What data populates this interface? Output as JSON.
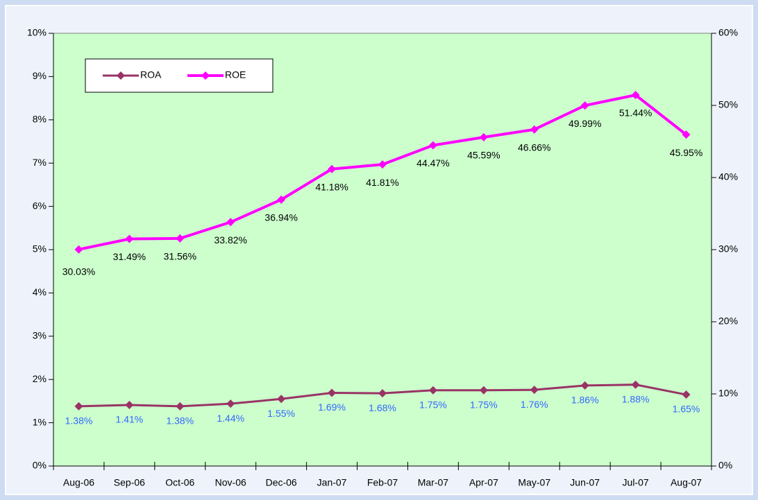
{
  "chart_data": {
    "type": "line",
    "categories": [
      "Aug-06",
      "Sep-06",
      "Oct-06",
      "Nov-06",
      "Dec-06",
      "Jan-07",
      "Feb-07",
      "Mar-07",
      "Apr-07",
      "May-07",
      "Jun-07",
      "Jul-07",
      "Aug-07"
    ],
    "series": [
      {
        "name": "ROA",
        "color": "#993366",
        "label_color": "#3366ff",
        "values": [
          1.38,
          1.41,
          1.38,
          1.44,
          1.55,
          1.69,
          1.68,
          1.75,
          1.75,
          1.76,
          1.86,
          1.88,
          1.65
        ],
        "value_labels": [
          "1.38%",
          "1.41%",
          "1.38%",
          "1.44%",
          "1.55%",
          "1.69%",
          "1.68%",
          "1.75%",
          "1.75%",
          "1.76%",
          "1.86%",
          "1.88%",
          "1.65%"
        ]
      },
      {
        "name": "ROE",
        "color": "#ff00ff",
        "axis": "y2",
        "label_color": "#000000",
        "values": [
          30.03,
          31.49,
          31.56,
          33.82,
          36.94,
          41.18,
          41.81,
          44.47,
          45.59,
          46.66,
          49.99,
          51.44,
          45.95
        ],
        "value_labels": [
          "30.03%",
          "31.49%",
          "31.56%",
          "33.82%",
          "36.94%",
          "41.18%",
          "41.81%",
          "44.47%",
          "45.59%",
          "46.66%",
          "49.99%",
          "51.44%",
          "45.95%"
        ]
      }
    ],
    "ylim": [
      0,
      10
    ],
    "yticks": [
      {
        "value": 0,
        "label": "0%"
      },
      {
        "value": 1,
        "label": "1%"
      },
      {
        "value": 2,
        "label": "2%"
      },
      {
        "value": 3,
        "label": "3%"
      },
      {
        "value": 4,
        "label": "4%"
      },
      {
        "value": 5,
        "label": "5%"
      },
      {
        "value": 6,
        "label": "6%"
      },
      {
        "value": 7,
        "label": "7%"
      },
      {
        "value": 8,
        "label": "8%"
      },
      {
        "value": 9,
        "label": "9%"
      },
      {
        "value": 10,
        "label": "10%"
      }
    ],
    "y2lim": [
      0,
      60
    ],
    "y2ticks": [
      {
        "value": 0,
        "label": "0%"
      },
      {
        "value": 10,
        "label": "10%"
      },
      {
        "value": 20,
        "label": "20%"
      },
      {
        "value": 30,
        "label": "30%"
      },
      {
        "value": 40,
        "label": "40%"
      },
      {
        "value": 50,
        "label": "50%"
      },
      {
        "value": 60,
        "label": "60%"
      }
    ],
    "plot_color": "#ccffcc",
    "grid": false,
    "legend": "top-left"
  }
}
